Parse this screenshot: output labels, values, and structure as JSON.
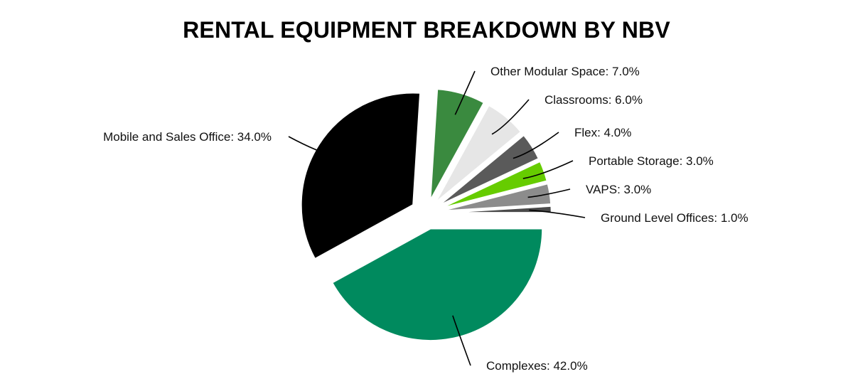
{
  "chart_data": {
    "type": "pie",
    "title": "RENTAL EQUIPMENT BREAKDOWN BY NBV",
    "slices": [
      {
        "label": "Complexes: 42.0%",
        "name": "Complexes",
        "value": 42.0,
        "color": "#008a5e"
      },
      {
        "label": "Mobile and Sales Office: 34.0%",
        "name": "Mobile and Sales Office",
        "value": 34.0,
        "color": "#000000"
      },
      {
        "label": "Other Modular Space: 7.0%",
        "name": "Other Modular Space",
        "value": 7.0,
        "color": "#3a8a3f"
      },
      {
        "label": "Classrooms: 6.0%",
        "name": "Classrooms",
        "value": 6.0,
        "color": "#e6e6e6"
      },
      {
        "label": "Flex: 4.0%",
        "name": "Flex",
        "value": 4.0,
        "color": "#5a5a5a"
      },
      {
        "label": "Portable Storage: 3.0%",
        "name": "Portable Storage",
        "value": 3.0,
        "color": "#66cc00"
      },
      {
        "label": "VAPS: 3.0%",
        "name": "VAPS",
        "value": 3.0,
        "color": "#8c8c8c"
      },
      {
        "label": "Ground Level Offices: 1.0%",
        "name": "Ground Level Offices",
        "value": 1.0,
        "color": "#4a4a4a"
      }
    ],
    "start_angle": "3 o'clock",
    "direction": "clockwise",
    "exploded": true
  }
}
